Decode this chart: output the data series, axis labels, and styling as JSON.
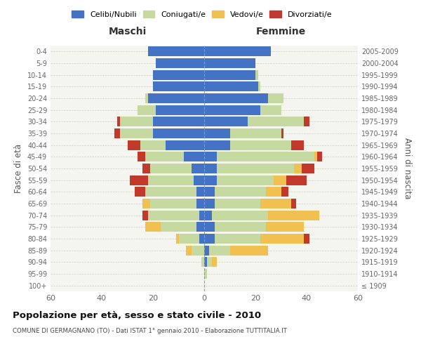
{
  "age_groups": [
    "100+",
    "95-99",
    "90-94",
    "85-89",
    "80-84",
    "75-79",
    "70-74",
    "65-69",
    "60-64",
    "55-59",
    "50-54",
    "45-49",
    "40-44",
    "35-39",
    "30-34",
    "25-29",
    "20-24",
    "15-19",
    "10-14",
    "5-9",
    "0-4"
  ],
  "birth_years": [
    "≤ 1909",
    "1910-1914",
    "1915-1919",
    "1920-1924",
    "1925-1929",
    "1930-1934",
    "1935-1939",
    "1940-1944",
    "1945-1949",
    "1950-1954",
    "1955-1959",
    "1960-1964",
    "1965-1969",
    "1970-1974",
    "1975-1979",
    "1980-1984",
    "1985-1989",
    "1990-1994",
    "1995-1999",
    "2000-2004",
    "2005-2009"
  ],
  "colors": {
    "celibi": "#4472c4",
    "coniugati": "#c5d9a0",
    "vedovi": "#f0c050",
    "divorziati": "#c0392b"
  },
  "maschi": {
    "celibi": [
      0,
      0,
      0,
      0,
      2,
      3,
      2,
      3,
      3,
      4,
      5,
      8,
      15,
      20,
      20,
      19,
      22,
      20,
      20,
      19,
      22
    ],
    "coniugati": [
      0,
      0,
      1,
      5,
      8,
      14,
      20,
      18,
      20,
      18,
      16,
      15,
      10,
      13,
      13,
      7,
      1,
      0,
      0,
      0,
      0
    ],
    "vedovi": [
      0,
      0,
      0,
      2,
      1,
      6,
      0,
      3,
      0,
      0,
      0,
      0,
      0,
      0,
      0,
      0,
      0,
      0,
      0,
      0,
      0
    ],
    "divorziati": [
      0,
      0,
      0,
      0,
      0,
      0,
      2,
      0,
      4,
      7,
      3,
      3,
      5,
      2,
      1,
      0,
      0,
      0,
      0,
      0,
      0
    ]
  },
  "femmine": {
    "celibi": [
      0,
      0,
      1,
      2,
      4,
      4,
      3,
      4,
      4,
      5,
      5,
      5,
      10,
      10,
      17,
      22,
      25,
      21,
      20,
      20,
      26
    ],
    "coniugati": [
      0,
      1,
      2,
      8,
      18,
      20,
      22,
      18,
      20,
      22,
      30,
      38,
      24,
      20,
      22,
      8,
      6,
      1,
      1,
      0,
      0
    ],
    "vedovi": [
      0,
      0,
      2,
      15,
      17,
      15,
      20,
      12,
      6,
      5,
      3,
      1,
      0,
      0,
      0,
      0,
      0,
      0,
      0,
      0,
      0
    ],
    "divorziati": [
      0,
      0,
      0,
      0,
      2,
      0,
      0,
      2,
      3,
      8,
      5,
      2,
      5,
      1,
      2,
      0,
      0,
      0,
      0,
      0,
      0
    ]
  },
  "title": "Popolazione per età, sesso e stato civile - 2010",
  "subtitle": "COMUNE DI GERMAGNANO (TO) - Dati ISTAT 1° gennaio 2010 - Elaborazione TUTTITALIA.IT",
  "xlabel_left": "Maschi",
  "xlabel_right": "Femmine",
  "ylabel_left": "Fasce di età",
  "ylabel_right": "Anni di nascita",
  "xlim": 60,
  "background_color": "#ffffff",
  "grid_color": "#cccccc",
  "ax_bg": "#f5f5f0"
}
